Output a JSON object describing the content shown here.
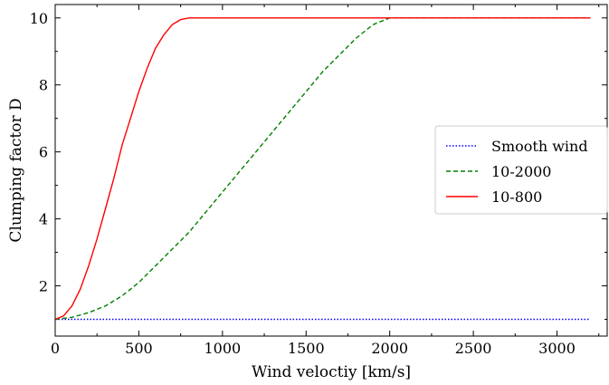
{
  "chart_data": {
    "type": "line",
    "xlabel": "Wind veloctiy [km/s]",
    "ylabel": "Clumping factor D",
    "xlim": [
      0,
      3300
    ],
    "ylim": [
      0.5,
      10.4
    ],
    "x_ticks": [
      0,
      500,
      1000,
      1500,
      2000,
      2500,
      3000
    ],
    "y_ticks": [
      2,
      4,
      6,
      8,
      10
    ],
    "grid": false,
    "legend_position": "center-right",
    "series": [
      {
        "name": "Smooth wind",
        "style": "dotted",
        "color": "#0000ff",
        "x": [
          0,
          500,
          1000,
          1500,
          2000,
          2500,
          3200
        ],
        "y": [
          1.0,
          1.0,
          1.0,
          1.0,
          1.0,
          1.0,
          1.0
        ]
      },
      {
        "name": "10-2000",
        "style": "dashed",
        "color": "#008000",
        "x": [
          0,
          100,
          200,
          300,
          400,
          500,
          600,
          700,
          800,
          900,
          1000,
          1100,
          1200,
          1300,
          1400,
          1500,
          1600,
          1700,
          1800,
          1900,
          2000,
          2500,
          3200
        ],
        "y": [
          1.0,
          1.06,
          1.2,
          1.4,
          1.7,
          2.1,
          2.6,
          3.1,
          3.6,
          4.2,
          4.8,
          5.4,
          6.0,
          6.6,
          7.2,
          7.8,
          8.4,
          8.9,
          9.4,
          9.8,
          10.0,
          10.0,
          10.0
        ]
      },
      {
        "name": "10-800",
        "style": "solid",
        "color": "#ff0000",
        "x": [
          0,
          50,
          100,
          150,
          200,
          250,
          300,
          350,
          400,
          450,
          500,
          550,
          600,
          650,
          700,
          750,
          800,
          1500,
          2500,
          3200
        ],
        "y": [
          1.0,
          1.1,
          1.4,
          1.9,
          2.6,
          3.4,
          4.3,
          5.2,
          6.2,
          7.0,
          7.8,
          8.5,
          9.1,
          9.5,
          9.8,
          9.95,
          10.0,
          10.0,
          10.0,
          10.0
        ]
      }
    ]
  }
}
